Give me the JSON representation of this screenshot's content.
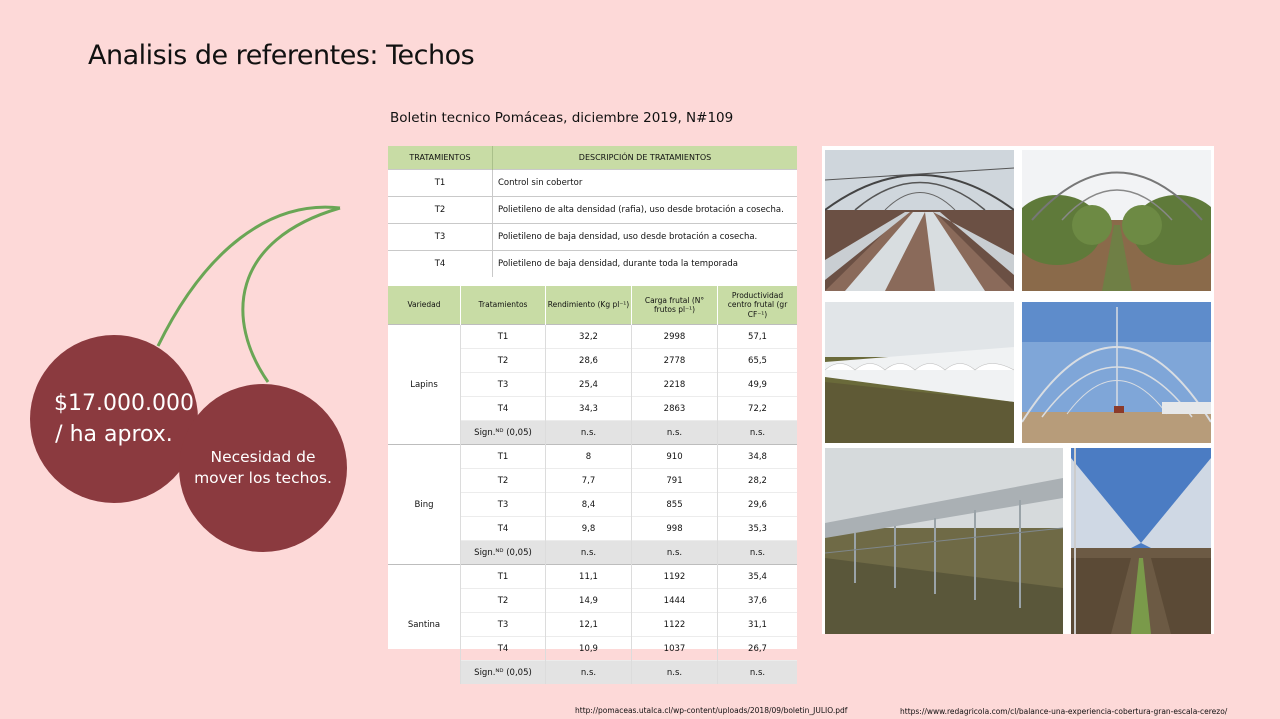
{
  "slide": {
    "title": "Analisis de referentes: Techos",
    "source_title": "Boletin tecnico Pomáceas, diciembre 2019, N#109",
    "price_text": "$17.000.000 / ha aprox.",
    "need_text": "Necesidad de mover los techos.",
    "url_left": "http://pomaceas.utalca.cl/wp-content/uploads/2018/09/boletin_JULIO.pdf",
    "url_right": "https://www.redagricola.com/cl/balance-una-experiencia-cobertura-gran-escala-cerezo/"
  },
  "treatments_table": {
    "headers": [
      "TRATAMIENTOS",
      "DESCRIPCIÓN DE TRATAMIENTOS"
    ],
    "rows": [
      {
        "code": "T1",
        "desc": "Control sin cobertor"
      },
      {
        "code": "T2",
        "desc": "Polietileno de alta densidad (rafia), uso desde brotación a cosecha."
      },
      {
        "code": "T3",
        "desc": "Polietileno de baja densidad, uso desde brotación a cosecha."
      },
      {
        "code": "T4",
        "desc": "Polietileno de baja densidad, durante toda la temporada"
      }
    ]
  },
  "results_table": {
    "headers": [
      "Variedad",
      "Tratamientos",
      "Rendimiento (Kg pl⁻¹)",
      "Carga frutal (N° frutos pl⁻¹)",
      "Productividad centro frutal (gr CF⁻¹)"
    ],
    "groups": [
      {
        "variety": "Lapins",
        "rows": [
          [
            "T1",
            "32,2",
            "2998",
            "57,1"
          ],
          [
            "T2",
            "28,6",
            "2778",
            "65,5"
          ],
          [
            "T3",
            "25,4",
            "2218",
            "49,9"
          ],
          [
            "T4",
            "34,3",
            "2863",
            "72,2"
          ],
          [
            "Sign.ᴺᴰ (0,05)",
            "n.s.",
            "n.s.",
            "n.s."
          ]
        ]
      },
      {
        "variety": "Bing",
        "rows": [
          [
            "T1",
            "8",
            "910",
            "34,8"
          ],
          [
            "T2",
            "7,7",
            "791",
            "28,2"
          ],
          [
            "T3",
            "8,4",
            "855",
            "29,6"
          ],
          [
            "T4",
            "9,8",
            "998",
            "35,3"
          ],
          [
            "Sign.ᴺᴰ (0,05)",
            "n.s.",
            "n.s.",
            "n.s."
          ]
        ]
      },
      {
        "variety": "Santina",
        "rows": [
          [
            "T1",
            "11,1",
            "1192",
            "35,4"
          ],
          [
            "T2",
            "14,9",
            "1444",
            "37,6"
          ],
          [
            "T3",
            "12,1",
            "1122",
            "31,1"
          ],
          [
            "T4",
            "10,9",
            "1037",
            "26,7"
          ],
          [
            "Sign.ᴺᴰ (0,05)",
            "n.s.",
            "n.s.",
            "n.s."
          ]
        ]
      }
    ]
  },
  "photos": [
    {
      "name": "photo-tunnel-rows"
    },
    {
      "name": "photo-orchard-arches"
    },
    {
      "name": "photo-white-tunnels"
    },
    {
      "name": "photo-arch-frame-sky"
    },
    {
      "name": "photo-steel-structure"
    },
    {
      "name": "photo-roof-covered-orchard"
    }
  ],
  "colors": {
    "background": "#fdd9d8",
    "circle": "#8b3a3f",
    "header_green": "#c8dca5",
    "stem": "#6aa655"
  }
}
